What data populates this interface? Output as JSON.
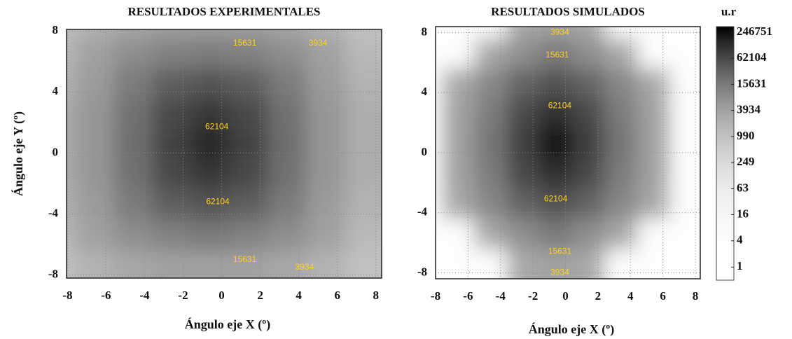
{
  "chart_data": [
    {
      "type": "contour",
      "title": "RESULTADOS EXPERIMENTALES",
      "xlabel": "Ángulo eje X (º)",
      "ylabel": "Ángulo eje Y (º)",
      "xlim": [
        -8.05,
        8.3
      ],
      "ylim": [
        -8.2,
        8.1
      ],
      "xticks": [
        -8,
        -6,
        -4,
        -2,
        0,
        2,
        4,
        6,
        8
      ],
      "yticks": [
        -8,
        -4,
        0,
        4,
        8
      ],
      "grid_x": [
        -8,
        -6,
        -4,
        -2,
        0,
        2,
        4,
        6,
        8
      ],
      "grid_y": [
        8,
        6,
        4,
        2,
        0,
        -2,
        -4,
        -6,
        -8
      ],
      "z": [
        [
          1000,
          2000,
          3000,
          4000,
          4000,
          4000,
          3000,
          2000,
          1000
        ],
        [
          1500,
          4000,
          8000,
          12000,
          14000,
          12000,
          8000,
          4000,
          1500
        ],
        [
          2000,
          5000,
          15000,
          35000,
          45000,
          35000,
          15000,
          5000,
          2000
        ],
        [
          2500,
          6000,
          20000,
          60000,
          90000,
          60000,
          20000,
          6000,
          2500
        ],
        [
          2500,
          6000,
          22000,
          70000,
          140000,
          70000,
          22000,
          6000,
          2500
        ],
        [
          2500,
          6000,
          20000,
          60000,
          90000,
          60000,
          20000,
          6000,
          2500
        ],
        [
          2000,
          5000,
          15000,
          35000,
          45000,
          35000,
          15000,
          5000,
          2000
        ],
        [
          1500,
          4000,
          8000,
          12000,
          16000,
          12000,
          8000,
          4000,
          1500
        ],
        [
          1000,
          2000,
          3000,
          4000,
          4000,
          4000,
          3000,
          2000,
          1000
        ]
      ],
      "contour_labels": [
        {
          "value": 15631,
          "x": 1.2,
          "y": 7.2
        },
        {
          "value": 3934,
          "x": 5.0,
          "y": 7.2
        },
        {
          "value": 62104,
          "x": -0.25,
          "y": 1.7
        },
        {
          "value": 62104,
          "x": -0.2,
          "y": -3.2
        },
        {
          "value": 15631,
          "x": 1.2,
          "y": -7.0
        },
        {
          "value": 3934,
          "x": 4.3,
          "y": -7.5
        }
      ],
      "label_color": "#ffd21f",
      "grid": true
    },
    {
      "type": "contour",
      "title": "RESULTADOS SIMULADOS",
      "xlabel": "Ángulo eje X (º)",
      "xlim": [
        -8,
        8.3
      ],
      "ylim": [
        -8.4,
        8.4
      ],
      "xticks": [
        -8,
        -6,
        -4,
        -2,
        0,
        2,
        4,
        6,
        8
      ],
      "yticks": [
        -8,
        -4,
        0,
        4,
        8
      ],
      "grid_x": [
        -8,
        -6,
        -4,
        -2,
        0,
        2,
        4,
        6,
        8
      ],
      "grid_y": [
        8,
        6,
        4,
        2,
        0,
        -2,
        -4,
        -6,
        -8
      ],
      "z": [
        [
          4,
          4,
          4,
          3000,
          3934,
          3000,
          4,
          4,
          4
        ],
        [
          4,
          4,
          3000,
          8000,
          15631,
          8000,
          3000,
          4,
          4
        ],
        [
          4,
          3000,
          10000,
          30000,
          50000,
          30000,
          10000,
          3000,
          4
        ],
        [
          4,
          4000,
          15000,
          62104,
          120000,
          62104,
          15000,
          4000,
          4
        ],
        [
          4,
          4000,
          18000,
          80000,
          246751,
          80000,
          18000,
          4000,
          4
        ],
        [
          4,
          4000,
          15000,
          62104,
          120000,
          62104,
          15000,
          4000,
          4
        ],
        [
          4,
          3000,
          10000,
          30000,
          50000,
          30000,
          10000,
          3000,
          4
        ],
        [
          4,
          4,
          3000,
          8000,
          15631,
          8000,
          3000,
          4,
          4
        ],
        [
          4,
          4,
          4,
          3000,
          3934,
          3000,
          4,
          4,
          4
        ]
      ],
      "contour_labels": [
        {
          "value": 3934,
          "x": -0.35,
          "y": 8.0
        },
        {
          "value": 15631,
          "x": -0.5,
          "y": 6.5
        },
        {
          "value": 62104,
          "x": -0.35,
          "y": 3.1
        },
        {
          "value": 62104,
          "x": -0.6,
          "y": -3.1
        },
        {
          "value": 15631,
          "x": -0.35,
          "y": -6.6
        },
        {
          "value": 3934,
          "x": -0.35,
          "y": -8.0
        }
      ],
      "label_color": "#ffd21f",
      "grid": true,
      "colorbar": {
        "label": "u.r",
        "log": true,
        "lim": [
          0.5,
          330000
        ],
        "ticks": [
          1,
          4,
          16,
          63,
          249,
          990,
          3934,
          15631,
          62104,
          246751
        ]
      }
    }
  ]
}
